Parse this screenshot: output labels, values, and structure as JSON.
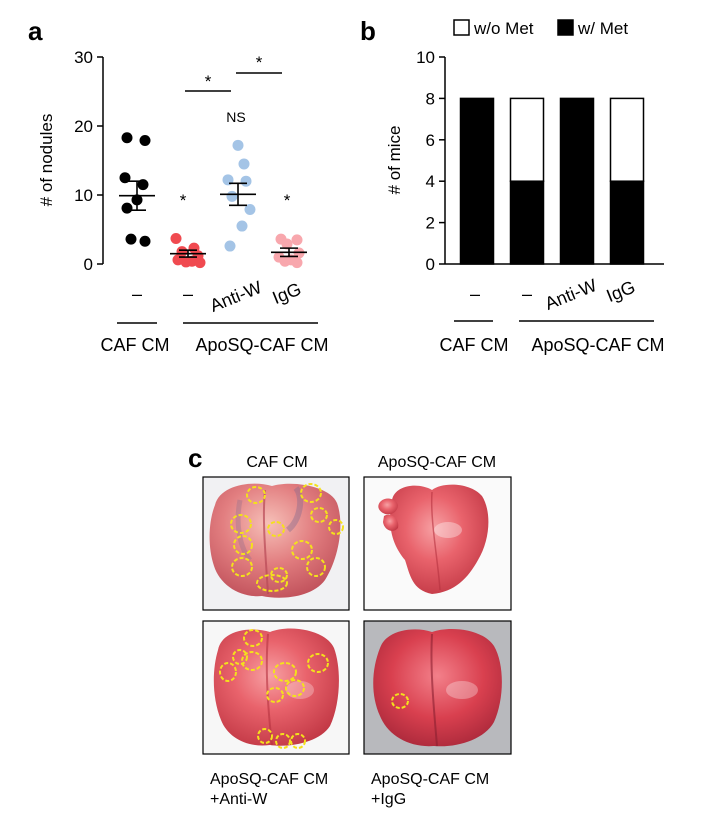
{
  "panels": {
    "a": "a",
    "b": "b",
    "c": "c"
  },
  "chart_data": [
    {
      "type": "scatter",
      "panel": "a",
      "ylabel": "# of nodules",
      "ylim": [
        0,
        30
      ],
      "yticks": [
        0,
        10,
        20,
        30
      ],
      "categories": [
        "–",
        "–",
        "Anti-W",
        "IgG"
      ],
      "group_labels": [
        "CAF CM",
        "ApoSQ-CAF CM"
      ],
      "series": [
        {
          "category": "–",
          "color": "#000000",
          "values": [
            18.3,
            17.9,
            12.5,
            11.5,
            9.3,
            8.1,
            3.6,
            3.3
          ],
          "mean": 9.9,
          "sem": 2.1
        },
        {
          "category": "–",
          "color": "#f04a50",
          "values": [
            3.7,
            2.3,
            1.8,
            1.2,
            0.6,
            0.4,
            0.3,
            0.2
          ],
          "mean": 1.5,
          "sem": 0.5
        },
        {
          "category": "Anti-W",
          "color": "#a4c4e6",
          "values": [
            17.2,
            14.5,
            12.2,
            12.0,
            9.8,
            7.9,
            5.5,
            2.6
          ],
          "mean": 10.1,
          "sem": 1.6
        },
        {
          "category": "IgG",
          "color": "#f8a7ad",
          "values": [
            3.6,
            3.5,
            2.9,
            1.6,
            1.0,
            0.6,
            0.4,
            0.2
          ],
          "mean": 1.7,
          "sem": 0.6
        }
      ],
      "annotations": {
        "star": "*",
        "ns": "NS"
      }
    },
    {
      "type": "bar",
      "panel": "b",
      "ylabel": "# of mice",
      "ylim": [
        0,
        10
      ],
      "yticks": [
        0,
        2,
        4,
        6,
        8,
        10
      ],
      "categories": [
        "–",
        "–",
        "Anti-W",
        "IgG"
      ],
      "group_labels": [
        "CAF CM",
        "ApoSQ-CAF CM"
      ],
      "legend_position": "top",
      "series": [
        {
          "name": "w/o Met",
          "color": "#ffffff",
          "values": [
            0,
            4,
            0,
            4
          ]
        },
        {
          "name": "w/ Met",
          "color": "#000000",
          "values": [
            8,
            4,
            8,
            4
          ]
        }
      ]
    }
  ],
  "photos": [
    {
      "caption": [
        "CAF CM"
      ],
      "caption_position": "top",
      "circles": 12
    },
    {
      "caption": [
        "ApoSQ-CAF CM"
      ],
      "caption_position": "top",
      "circles": 0
    },
    {
      "caption": [
        "ApoSQ-CAF CM",
        "+Anti-W"
      ],
      "caption_position": "bottom",
      "circles": 11
    },
    {
      "caption": [
        "ApoSQ-CAF CM",
        "+IgG"
      ],
      "caption_position": "bottom",
      "circles": 1
    }
  ]
}
